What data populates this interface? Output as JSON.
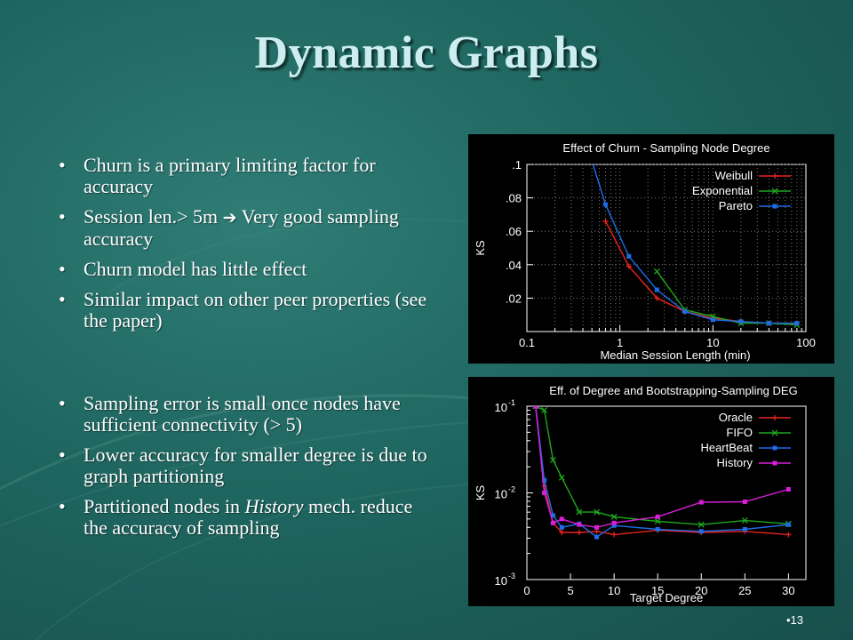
{
  "slide": {
    "title": "Dynamic Graphs",
    "page_number": "•13",
    "bullet_char": "•"
  },
  "bullets_top": [
    {
      "parts": [
        {
          "t": "Churn is a primary limiting factor for accuracy"
        }
      ]
    },
    {
      "parts": [
        {
          "t": "Session len.> 5m "
        },
        {
          "t": "➔",
          "arrow": true
        },
        {
          "t": " Very good sampling accuracy"
        }
      ]
    },
    {
      "parts": [
        {
          "t": "Churn model has little effect"
        }
      ]
    },
    {
      "parts": [
        {
          "t": "Similar impact on other peer properties (see the paper)"
        }
      ]
    }
  ],
  "bullets_bottom": [
    {
      "parts": [
        {
          "t": "Sampling error is small once nodes have sufficient connectivity (> 5)"
        }
      ]
    },
    {
      "parts": [
        {
          "t": "Lower accuracy for smaller degree is due to graph partitioning"
        }
      ]
    },
    {
      "parts": [
        {
          "t": "Partitioned nodes in "
        },
        {
          "t": "History",
          "italic": true
        },
        {
          "t": " mech. reduce the accuracy of sampling"
        }
      ]
    }
  ],
  "chart_data": [
    {
      "type": "line",
      "title": "Effect of Churn - Sampling Node Degree",
      "xlabel": "Median Session Length (min)",
      "ylabel": "KS",
      "xscale": "log",
      "xlim": [
        0.1,
        100
      ],
      "ylim": [
        0,
        0.1
      ],
      "xticks": [
        0.1,
        1,
        10,
        100
      ],
      "xtick_labels": [
        "0.1",
        "1",
        "10",
        "100"
      ],
      "yticks": [
        0.02,
        0.04,
        0.06,
        0.08,
        0.1
      ],
      "ytick_labels": [
        ".02",
        ".04",
        ".06",
        ".08",
        ".1"
      ],
      "grid": true,
      "legend": "top-right",
      "series": [
        {
          "name": "Weibull",
          "color": "#e8231f",
          "marker": "plus",
          "x": [
            0.7,
            1.25,
            2.5,
            5,
            10,
            20,
            40,
            80
          ],
          "y": [
            0.066,
            0.039,
            0.02,
            0.012,
            0.008,
            0.006,
            0.005,
            0.005
          ]
        },
        {
          "name": "Exponential",
          "color": "#1ea81e",
          "marker": "x",
          "x": [
            2.5,
            5,
            10,
            20,
            40,
            80
          ],
          "y": [
            0.036,
            0.013,
            0.009,
            0.005,
            0.005,
            0.004
          ]
        },
        {
          "name": "Pareto",
          "color": "#1e6ce8",
          "marker": "square",
          "x": [
            0.5,
            0.7,
            1.25,
            2.5,
            5,
            10,
            20,
            40,
            80
          ],
          "y": [
            0.102,
            0.076,
            0.045,
            0.025,
            0.012,
            0.007,
            0.006,
            0.005,
            0.005
          ]
        }
      ]
    },
    {
      "type": "line",
      "title": "Eff. of Degree and Bootstrapping-Sampling DEG",
      "xlabel": "Target Degree",
      "ylabel": "KS",
      "yscale": "log",
      "xlim": [
        0,
        32
      ],
      "ylim": [
        0.001,
        0.1
      ],
      "xticks": [
        0,
        5,
        10,
        15,
        20,
        25,
        30
      ],
      "xtick_labels": [
        "0",
        "5",
        "10",
        "15",
        "20",
        "25",
        "30"
      ],
      "yticks": [
        0.001,
        0.01,
        0.1
      ],
      "ytick_labels": [
        {
          "base": "10",
          "exp": "-3"
        },
        {
          "base": "10",
          "exp": "-2"
        },
        {
          "base": "10",
          "exp": "-1"
        }
      ],
      "grid": false,
      "legend": "top-right",
      "series": [
        {
          "name": "Oracle",
          "color": "#e8231f",
          "marker": "plus",
          "x": [
            1,
            2,
            3,
            4,
            6,
            8,
            10,
            15,
            20,
            25,
            30
          ],
          "y": [
            0.1,
            0.012,
            0.0045,
            0.0035,
            0.0035,
            0.0036,
            0.0033,
            0.0037,
            0.0035,
            0.0036,
            0.0033
          ]
        },
        {
          "name": "FIFO",
          "color": "#1ea81e",
          "marker": "x",
          "x": [
            1,
            2,
            3,
            4,
            6,
            8,
            10,
            15,
            20,
            25,
            30
          ],
          "y": [
            0.1,
            0.09,
            0.024,
            0.015,
            0.006,
            0.006,
            0.0053,
            0.0047,
            0.0043,
            0.0048,
            0.0044
          ]
        },
        {
          "name": "HeartBeat",
          "color": "#1e6ce8",
          "marker": "square",
          "x": [
            1,
            2,
            3,
            4,
            6,
            8,
            10,
            15,
            20,
            25,
            30
          ],
          "y": [
            0.1,
            0.014,
            0.0055,
            0.004,
            0.0044,
            0.0031,
            0.0042,
            0.0038,
            0.0036,
            0.0038,
            0.0043
          ]
        },
        {
          "name": "History",
          "color": "#d81ed8",
          "marker": "square",
          "x": [
            1,
            2,
            3,
            4,
            6,
            8,
            10,
            15,
            20,
            25,
            30
          ],
          "y": [
            0.1,
            0.01,
            0.0045,
            0.005,
            0.0043,
            0.004,
            0.0045,
            0.0053,
            0.0078,
            0.0079,
            0.011
          ]
        }
      ]
    }
  ]
}
